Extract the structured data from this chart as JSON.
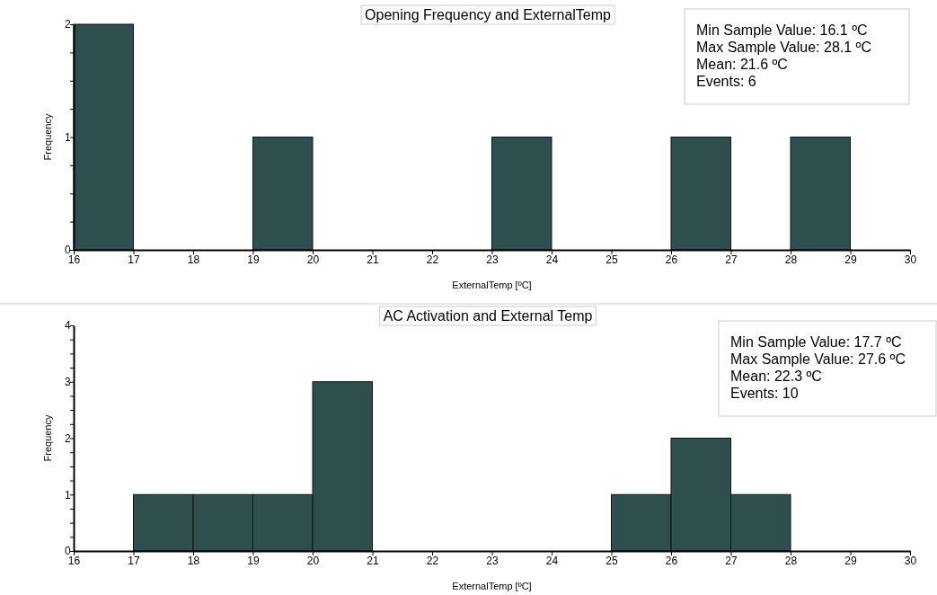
{
  "chart_data": [
    {
      "type": "histogram",
      "title": "Opening Frequency and ExternalTemp",
      "xlabel": "ExternalTemp [ºC]",
      "ylabel": "Frequency",
      "bins": [
        16,
        17,
        18,
        19,
        20,
        21,
        22,
        23,
        24,
        25,
        26,
        27,
        28,
        29,
        30
      ],
      "values": [
        2,
        0,
        0,
        1,
        0,
        0,
        0,
        1,
        0,
        0,
        1,
        0,
        1,
        0
      ],
      "color": "#2f4f4f",
      "xlim": [
        16,
        30
      ],
      "xticks": [
        16,
        17,
        18,
        19,
        20,
        21,
        22,
        23,
        24,
        25,
        26,
        27,
        28,
        29,
        30
      ],
      "ylim": [
        0,
        2
      ],
      "yticks": [
        0,
        {
          "value": 0.25,
          "label": null
        },
        {
          "value": 0.5,
          "label": null
        },
        {
          "value": 0.75,
          "label": null
        },
        1,
        {
          "value": 1.25,
          "label": null
        },
        {
          "value": 1.5,
          "label": null
        },
        {
          "value": 1.75,
          "label": null
        },
        2
      ],
      "annotations": [
        "Min Sample Value: 16.1 ºC",
        "Max Sample Value: 28.1 ºC",
        "Mean: 21.6 ºC",
        "Events: 6"
      ]
    },
    {
      "type": "histogram",
      "title": "AC Activation and External Temp",
      "xlabel": "ExternalTemp [ºC]",
      "ylabel": "Frequency",
      "bins": [
        16,
        17,
        18,
        19,
        20,
        21,
        22,
        23,
        24,
        25,
        26,
        27,
        28,
        29,
        30
      ],
      "values": [
        0,
        1,
        1,
        1,
        3,
        0,
        0,
        0,
        0,
        1,
        2,
        1,
        0,
        0
      ],
      "color": "#2f4f4f",
      "xlim": [
        16,
        30
      ],
      "xticks": [
        16,
        17,
        18,
        19,
        20,
        21,
        22,
        23,
        24,
        25,
        26,
        27,
        28,
        29,
        30
      ],
      "ylim": [
        0,
        4
      ],
      "yticks": [
        0,
        {
          "value": 0.25,
          "label": null
        },
        {
          "value": 0.5,
          "label": null
        },
        {
          "value": 0.75,
          "label": null
        },
        1,
        {
          "value": 1.25,
          "label": null
        },
        {
          "value": 1.5,
          "label": null
        },
        {
          "value": 1.75,
          "label": null
        },
        2,
        {
          "value": 2.25,
          "label": null
        },
        {
          "value": 2.5,
          "label": null
        },
        {
          "value": 2.75,
          "label": null
        },
        3,
        {
          "value": 3.25,
          "label": null
        },
        {
          "value": 3.5,
          "label": null
        },
        {
          "value": 3.75,
          "label": null
        },
        4
      ],
      "annotations": [
        "Min Sample Value: 17.7 ºC",
        "Max Sample Value: 27.6 ºC",
        "Mean: 22.3 ºC",
        "Events: 10"
      ]
    }
  ]
}
